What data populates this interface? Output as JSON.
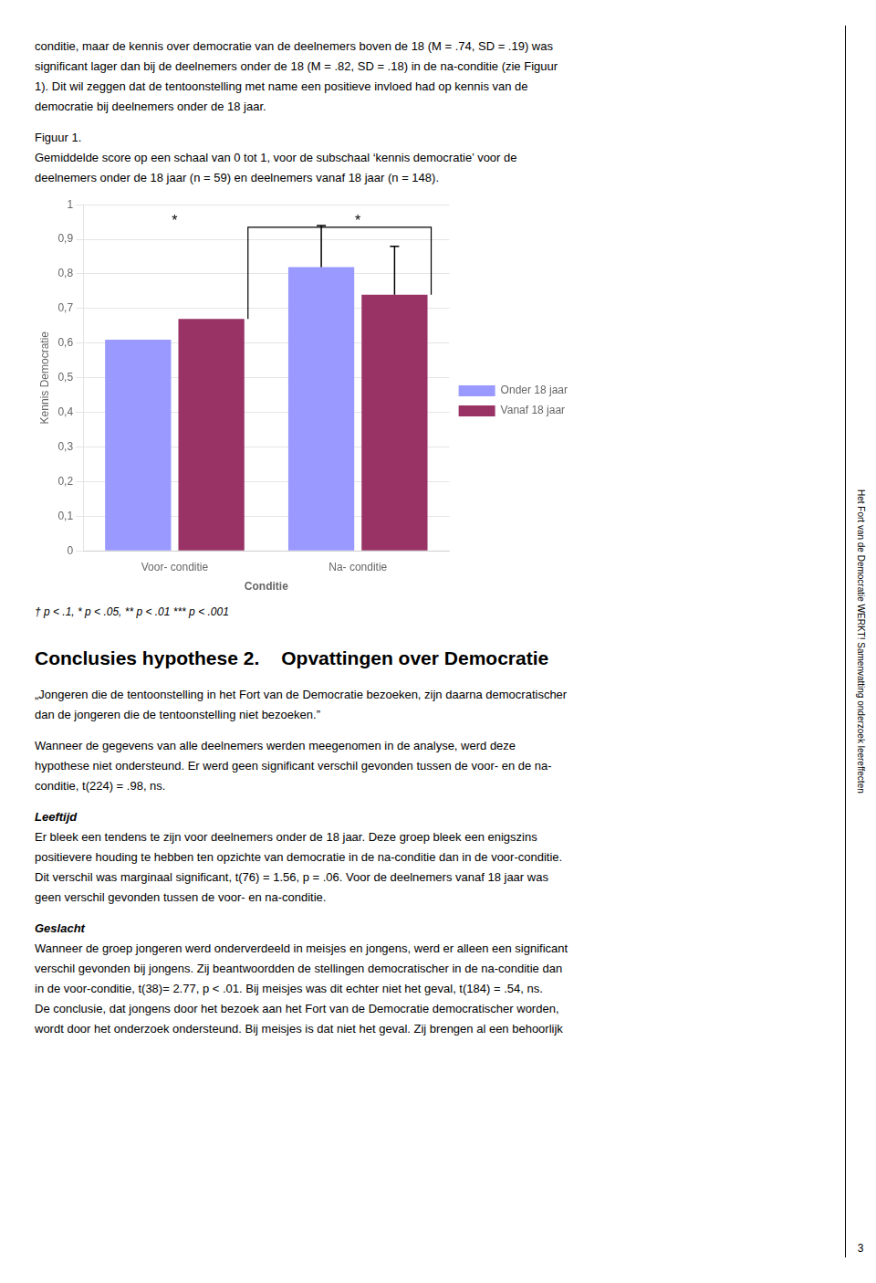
{
  "chart_data": {
    "type": "bar",
    "categories": [
      "Voor- conditie",
      "Na- conditie"
    ],
    "series": [
      {
        "name": "Onder 18 jaar",
        "color": "#9999ff",
        "values": [
          0.61,
          0.82
        ],
        "error_upper": [
          null,
          0.12
        ]
      },
      {
        "name": "Vanaf 18 jaar",
        "color": "#993366",
        "values": [
          0.67,
          0.74
        ],
        "error_upper": [
          null,
          0.14
        ]
      }
    ],
    "x_label": "Conditie",
    "y_label": "Kennis Democratie",
    "ylim": [
      0,
      1.0
    ],
    "yticks": [
      0,
      {
        "value": 0.1,
        "label": "0,1"
      },
      {
        "value": 0.2,
        "label": "0,2"
      },
      {
        "value": 0.3,
        "label": "0,3"
      },
      {
        "value": 0.4,
        "label": "0,4"
      },
      {
        "value": 0.5,
        "label": "0,5"
      },
      {
        "value": 0.6,
        "label": "0,6"
      },
      {
        "value": 0.7,
        "label": "0,7"
      },
      {
        "value": 0.8,
        "label": "0,8"
      },
      {
        "value": 0.9,
        "label": "0,9"
      },
      1
    ],
    "grid": true,
    "legend": "right",
    "bracket": {
      "y": 0.935,
      "series": "Vanaf 18 jaar",
      "categories": [
        "Voor- conditie",
        "Na- conditie"
      ]
    },
    "annotations": [
      {
        "text": "*",
        "category": "Voor- conditie"
      },
      {
        "text": "*",
        "category": "Na- conditie"
      }
    ]
  },
  "text_above": [
    "conditie, maar de kennis over democratie van de deelnemers boven de 18 (M = .74, SD = .19) was",
    "significant lager dan bij de deelnemers onder de 18 (M = .82, SD = .18) in de na-conditie (zie Figuur",
    "1). Dit wil zeggen dat de tentoonstelling met name een positieve invloed had op kennis van de",
    "democratie bij deelnemers onder de 18 jaar."
  ],
  "figure_caption": [
    "Figuur 1.",
    "Gemiddelde score op een schaal van 0 tot 1, voor de subschaal ‘kennis democratie’ voor de",
    "deelnemers onder de 18 jaar (n = 59) en deelnemers vanaf 18 jaar (n = 148)."
  ],
  "footnote": "† p < .1, * p < .05, ** p < .01 *** p < .001",
  "section_title": [
    "Conclusies hypothese 2.",
    "Opvattingen over Democratie"
  ],
  "quote": [
    "„Jongeren die de tentoonstelling in het Fort van de Democratie bezoeken, zijn daarna democratischer",
    "dan de jongeren die de tentoonstelling niet bezoeken.”"
  ],
  "paragraph": [
    "Wanneer de gegevens van alle deelnemers werden meegenomen in de analyse, werd deze",
    "hypothese niet ondersteund. Er werd geen significant verschil gevonden tussen de voor- en de na-",
    "conditie, t(224) = .98, ns."
  ],
  "subsections": [
    {
      "title": "Leeftijd",
      "lines": [
        "Er bleek een tendens te zijn voor deelnemers onder de 18 jaar. Deze groep bleek een enigszins",
        "positievere houding te hebben ten opzichte van democratie in de na-conditie dan in de voor-conditie.",
        "Dit verschil was marginaal significant, t(76) = 1.56, p = .06. Voor de deelnemers vanaf 18 jaar was",
        "geen verschil gevonden tussen de voor- en na-conditie."
      ]
    },
    {
      "title": "Geslacht",
      "lines": [
        "Wanneer de groep jongeren werd onderverdeeld in meisjes en jongens, werd er alleen een significant",
        "verschil gevonden bij jongens. Zij beantwoordden de stellingen democratischer in de na-conditie dan",
        "in de voor-conditie, t(38)= 2.77, p < .01. Bij meisjes was dit echter niet het geval, t(184) = .54, ns.",
        "De conclusie, dat jongens door het bezoek aan het Fort van de Democratie democratischer worden,",
        "wordt door het onderzoek ondersteund. Bij meisjes is dat niet het geval. Zij brengen al een behoorlijk"
      ]
    }
  ],
  "sidebar_text": "Het Fort van de Democratie WERKT! Samenvatting onderzoek leereffecten",
  "page_number": "3"
}
